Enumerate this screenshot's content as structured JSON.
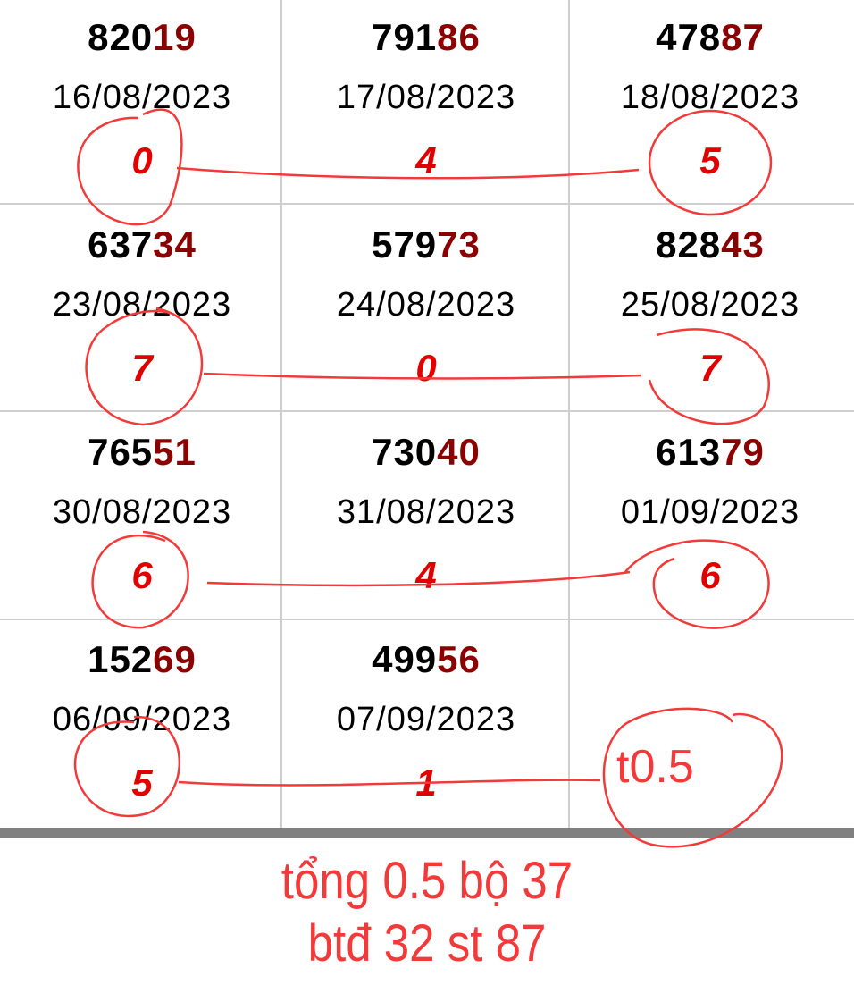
{
  "cells": [
    {
      "head": "820",
      "tail": "19",
      "date": "16/08/2023",
      "sum": "0"
    },
    {
      "head": "791",
      "tail": "86",
      "date": "17/08/2023",
      "sum": "4"
    },
    {
      "head": "478",
      "tail": "87",
      "date": "18/08/2023",
      "sum": "5"
    },
    {
      "head": "637",
      "tail": "34",
      "date": "23/08/2023",
      "sum": "7"
    },
    {
      "head": "579",
      "tail": "73",
      "date": "24/08/2023",
      "sum": "0"
    },
    {
      "head": "828",
      "tail": "43",
      "date": "25/08/2023",
      "sum": "7"
    },
    {
      "head": "765",
      "tail": "51",
      "date": "30/08/2023",
      "sum": "6"
    },
    {
      "head": "730",
      "tail": "40",
      "date": "31/08/2023",
      "sum": "4"
    },
    {
      "head": "613",
      "tail": "79",
      "date": "01/09/2023",
      "sum": "6"
    },
    {
      "head": "152",
      "tail": "69",
      "date": "06/09/2023",
      "sum": "5"
    },
    {
      "head": "499",
      "tail": "56",
      "date": "07/09/2023",
      "sum": "1"
    }
  ],
  "annotation": {
    "handwritten": "t0.5",
    "line1": "tổng 0.5 bộ 37",
    "line2": "btđ 32 st 87"
  },
  "colors": {
    "tail": "#8b0000",
    "sum": "#e00000",
    "annotation": "#f23a3a"
  }
}
